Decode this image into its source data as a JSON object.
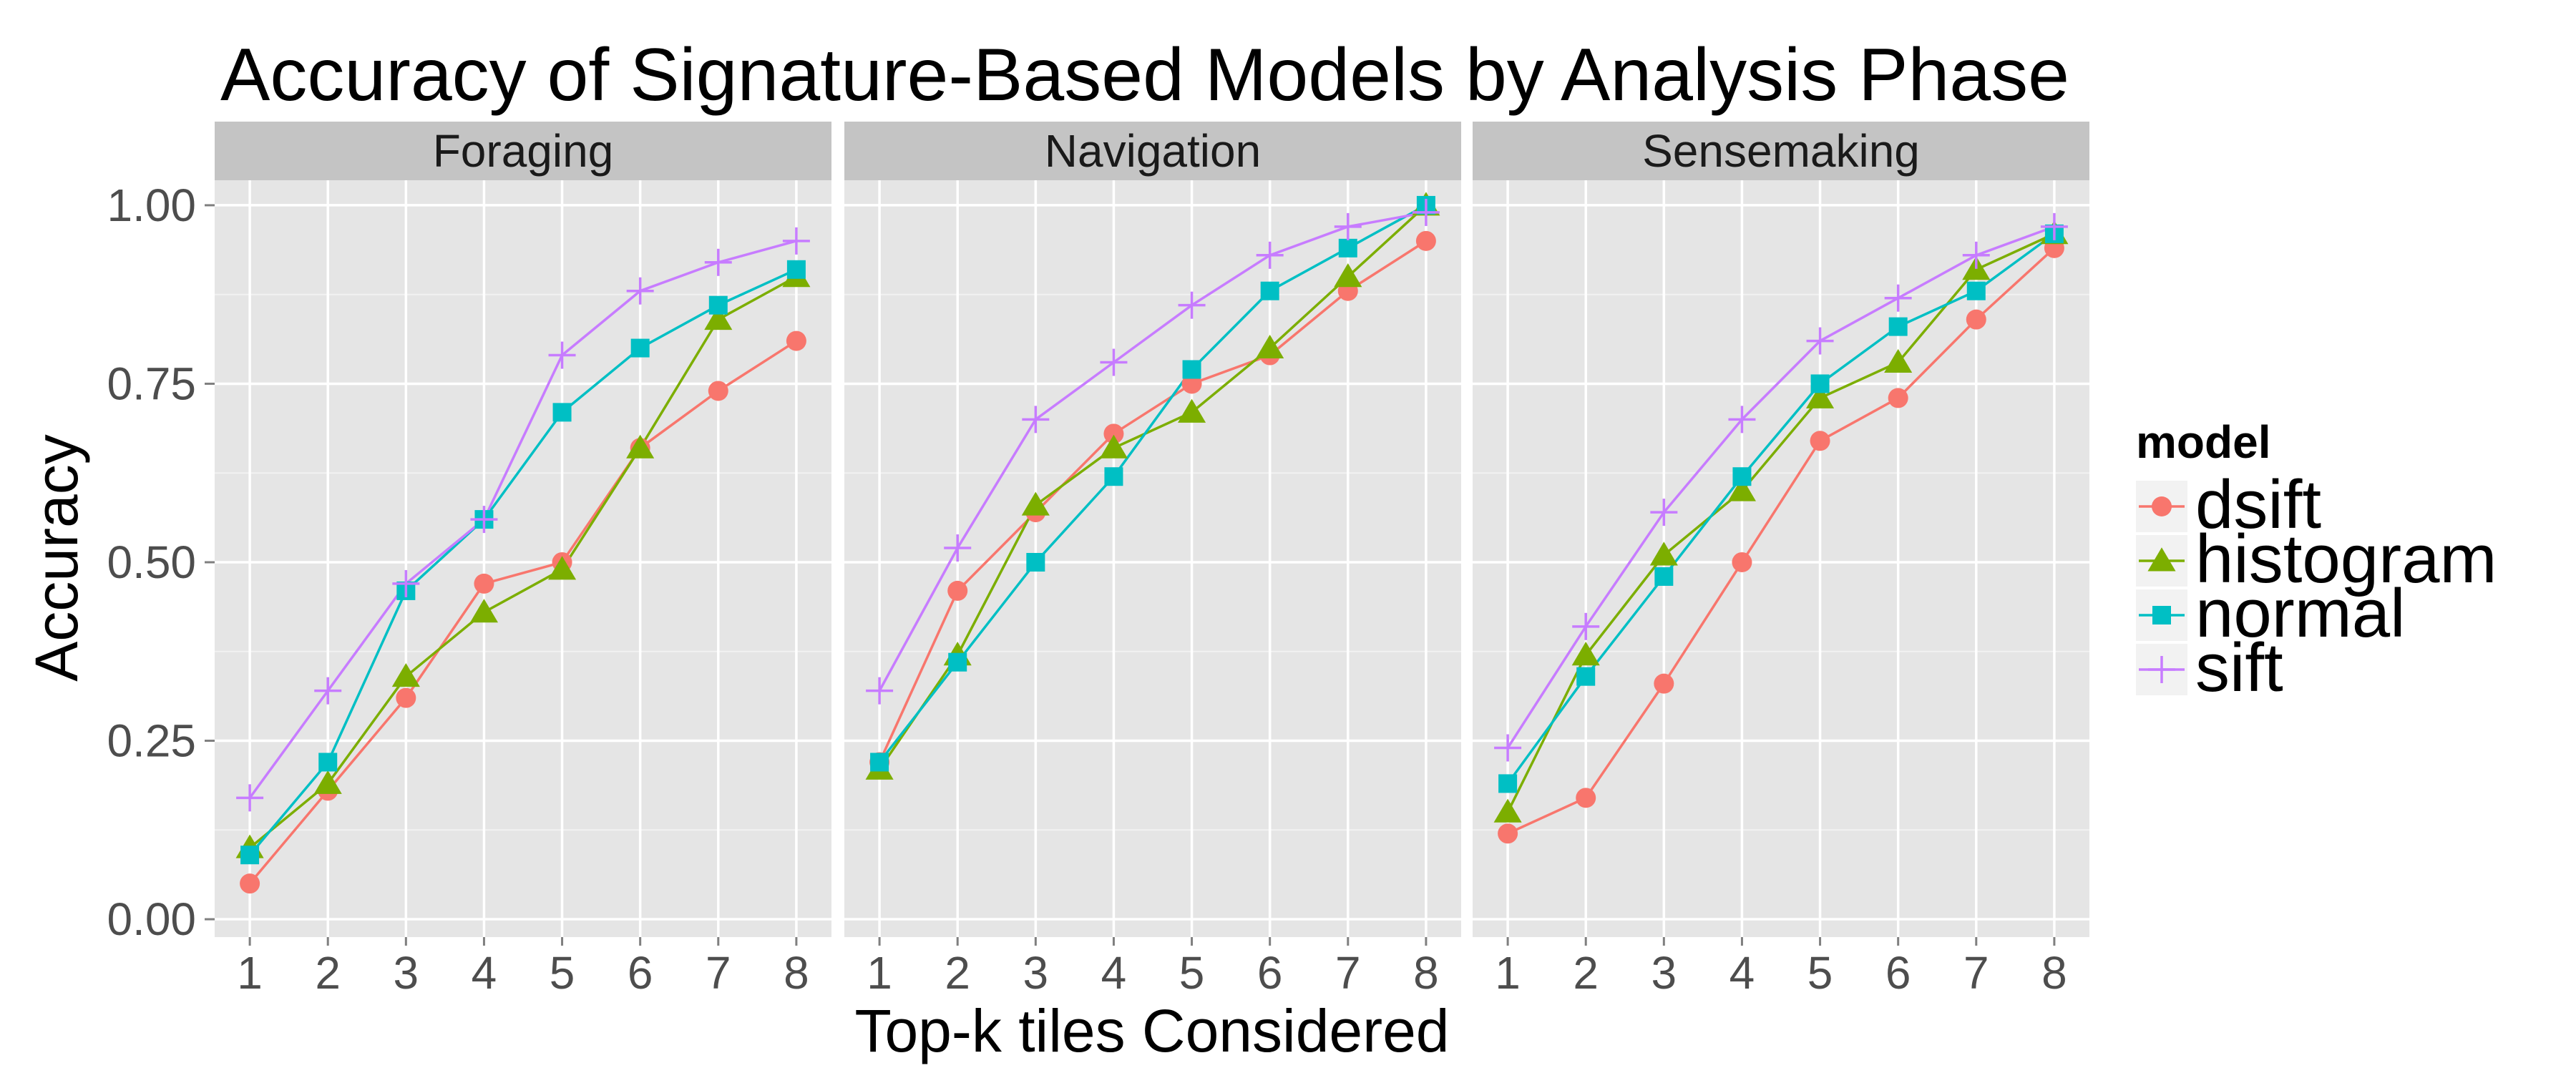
{
  "chart_data": {
    "type": "line",
    "title": "Accuracy of Signature-Based Models by Analysis Phase",
    "xlabel": "Top-k tiles Considered",
    "ylabel": "Accuracy",
    "x": [
      1,
      2,
      3,
      4,
      5,
      6,
      7,
      8
    ],
    "x_tick_labels": [
      "1",
      "2",
      "3",
      "4",
      "5",
      "6",
      "7",
      "8"
    ],
    "ylim": [
      0,
      1
    ],
    "y_ticks": [
      0,
      0.25,
      0.5,
      0.75,
      1.0
    ],
    "y_tick_labels": [
      "0.00",
      "0.25",
      "0.50",
      "0.75",
      "1.00"
    ],
    "grid": true,
    "legend": {
      "title": "model",
      "placement": "right",
      "entries": [
        {
          "name": "dsift",
          "color": "#F8766D",
          "shape": "circle"
        },
        {
          "name": "histogram",
          "color": "#7CAE00",
          "shape": "triangle"
        },
        {
          "name": "normal",
          "color": "#00BFC4",
          "shape": "square"
        },
        {
          "name": "sift",
          "color": "#C77CFF",
          "shape": "plus"
        }
      ]
    },
    "panels": [
      {
        "name": "Foraging",
        "series": [
          {
            "name": "dsift",
            "values": [
              0.05,
              0.18,
              0.31,
              0.47,
              0.5,
              0.66,
              0.74,
              0.81
            ]
          },
          {
            "name": "histogram",
            "values": [
              0.1,
              0.19,
              0.34,
              0.43,
              0.49,
              0.66,
              0.84,
              0.9
            ]
          },
          {
            "name": "normal",
            "values": [
              0.09,
              0.22,
              0.46,
              0.56,
              0.71,
              0.8,
              0.86,
              0.91
            ]
          },
          {
            "name": "sift",
            "values": [
              0.17,
              0.32,
              0.47,
              0.56,
              0.79,
              0.88,
              0.92,
              0.95
            ]
          }
        ]
      },
      {
        "name": "Navigation",
        "series": [
          {
            "name": "dsift",
            "values": [
              0.22,
              0.46,
              0.57,
              0.68,
              0.75,
              0.79,
              0.88,
              0.95
            ]
          },
          {
            "name": "histogram",
            "values": [
              0.21,
              0.37,
              0.58,
              0.66,
              0.71,
              0.8,
              0.9,
              1.0
            ]
          },
          {
            "name": "normal",
            "values": [
              0.22,
              0.36,
              0.5,
              0.62,
              0.77,
              0.88,
              0.94,
              1.0
            ]
          },
          {
            "name": "sift",
            "values": [
              0.32,
              0.52,
              0.7,
              0.78,
              0.86,
              0.93,
              0.97,
              0.99
            ]
          }
        ]
      },
      {
        "name": "Sensemaking",
        "series": [
          {
            "name": "dsift",
            "values": [
              0.12,
              0.17,
              0.33,
              0.5,
              0.67,
              0.73,
              0.84,
              0.94
            ]
          },
          {
            "name": "histogram",
            "values": [
              0.15,
              0.37,
              0.51,
              0.6,
              0.73,
              0.78,
              0.91,
              0.96
            ]
          },
          {
            "name": "normal",
            "values": [
              0.19,
              0.34,
              0.48,
              0.62,
              0.75,
              0.83,
              0.88,
              0.96
            ]
          },
          {
            "name": "sift",
            "values": [
              0.24,
              0.41,
              0.57,
              0.7,
              0.81,
              0.87,
              0.93,
              0.97
            ]
          }
        ]
      }
    ]
  }
}
